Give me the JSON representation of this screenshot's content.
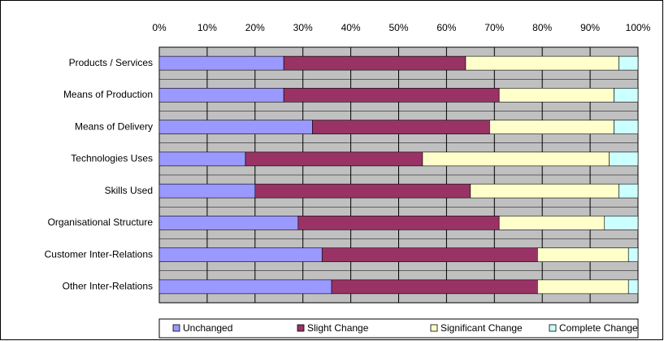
{
  "chart_data": {
    "type": "stacked_bar_horizontal",
    "categories": [
      "Products / Services",
      "Means of Production",
      "Means of Delivery",
      "Technologies Uses",
      "Skills Used",
      "Organisational Structure",
      "Customer Inter-Relations",
      "Other Inter-Relations"
    ],
    "series": [
      {
        "name": "Unchanged",
        "color": "#9999ff",
        "values": [
          26,
          26,
          32,
          18,
          20,
          29,
          34,
          36
        ]
      },
      {
        "name": "Slight Change",
        "color": "#993366",
        "values": [
          38,
          45,
          37,
          37,
          45,
          42,
          45,
          43
        ]
      },
      {
        "name": "Significant Change",
        "color": "#ffffcc",
        "values": [
          32,
          24,
          26,
          39,
          31,
          22,
          19,
          19
        ]
      },
      {
        "name": "Complete Change",
        "color": "#ccffff",
        "values": [
          4,
          5,
          5,
          6,
          4,
          7,
          2,
          2
        ]
      }
    ],
    "xlim": [
      0,
      100
    ],
    "xticks": [
      {
        "value": 0,
        "label": "0%"
      },
      {
        "value": 10,
        "label": "10%"
      },
      {
        "value": 20,
        "label": "20%"
      },
      {
        "value": 30,
        "label": "30%"
      },
      {
        "value": 40,
        "label": "40%"
      },
      {
        "value": 50,
        "label": "50%"
      },
      {
        "value": 60,
        "label": "60%"
      },
      {
        "value": 70,
        "label": "70%"
      },
      {
        "value": 80,
        "label": "80%"
      },
      {
        "value": 90,
        "label": "90%"
      },
      {
        "value": 100,
        "label": "100%"
      }
    ],
    "grid": true,
    "legend": "bottom"
  }
}
